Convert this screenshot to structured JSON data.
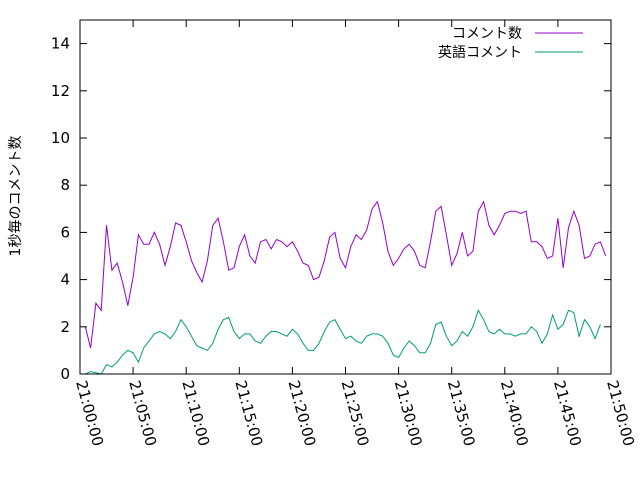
{
  "chart_data": {
    "type": "line",
    "ylabel": "1秒毎のコメント数",
    "ylim": [
      0,
      15
    ],
    "yticks": [
      "0",
      "2",
      "4",
      "6",
      "8",
      "10",
      "12",
      "14"
    ],
    "xlim": [
      "21:00:00",
      "21:50:00"
    ],
    "xticks": [
      "21:00:00",
      "21:05:00",
      "21:10:00",
      "21:15:00",
      "21:20:00",
      "21:25:00",
      "21:30:00",
      "21:35:00",
      "21:40:00",
      "21:45:00",
      "21:50:00"
    ],
    "x_unit": "minutes after 21:00:00",
    "legend_position": "top-right",
    "grid": false,
    "series": [
      {
        "name": "コメント数",
        "color": "#9400d3",
        "points": [
          [
            0.5,
            2.0
          ],
          [
            1.0,
            1.1
          ],
          [
            1.5,
            3.0
          ],
          [
            2.0,
            2.7
          ],
          [
            2.5,
            6.3
          ],
          [
            3.0,
            4.4
          ],
          [
            3.5,
            4.7
          ],
          [
            4.0,
            3.9
          ],
          [
            4.5,
            2.9
          ],
          [
            5.0,
            4.1
          ],
          [
            5.5,
            5.9
          ],
          [
            6.0,
            5.5
          ],
          [
            6.5,
            5.5
          ],
          [
            7.0,
            6.0
          ],
          [
            7.5,
            5.5
          ],
          [
            8.0,
            4.6
          ],
          [
            8.5,
            5.4
          ],
          [
            9.0,
            6.4
          ],
          [
            9.5,
            6.3
          ],
          [
            10.0,
            5.6
          ],
          [
            10.5,
            4.8
          ],
          [
            11.0,
            4.3
          ],
          [
            11.5,
            3.9
          ],
          [
            12.0,
            4.8
          ],
          [
            12.5,
            6.3
          ],
          [
            13.0,
            6.6
          ],
          [
            13.5,
            5.6
          ],
          [
            14.0,
            4.4
          ],
          [
            14.5,
            4.5
          ],
          [
            15.0,
            5.4
          ],
          [
            15.5,
            5.9
          ],
          [
            16.0,
            5.0
          ],
          [
            16.5,
            4.7
          ],
          [
            17.0,
            5.6
          ],
          [
            17.5,
            5.7
          ],
          [
            18.0,
            5.3
          ],
          [
            18.5,
            5.7
          ],
          [
            19.0,
            5.6
          ],
          [
            19.5,
            5.4
          ],
          [
            20.0,
            5.6
          ],
          [
            20.5,
            5.2
          ],
          [
            21.0,
            4.7
          ],
          [
            21.5,
            4.6
          ],
          [
            22.0,
            4.0
          ],
          [
            22.5,
            4.1
          ],
          [
            23.0,
            4.8
          ],
          [
            23.5,
            5.8
          ],
          [
            24.0,
            6.0
          ],
          [
            24.5,
            4.9
          ],
          [
            25.0,
            4.5
          ],
          [
            25.5,
            5.4
          ],
          [
            26.0,
            5.9
          ],
          [
            26.5,
            5.7
          ],
          [
            27.0,
            6.1
          ],
          [
            27.5,
            7.0
          ],
          [
            28.0,
            7.3
          ],
          [
            28.5,
            6.4
          ],
          [
            29.0,
            5.2
          ],
          [
            29.5,
            4.6
          ],
          [
            30.0,
            4.9
          ],
          [
            30.5,
            5.3
          ],
          [
            31.0,
            5.5
          ],
          [
            31.5,
            5.2
          ],
          [
            32.0,
            4.6
          ],
          [
            32.5,
            4.5
          ],
          [
            33.0,
            5.6
          ],
          [
            33.5,
            6.9
          ],
          [
            34.0,
            7.1
          ],
          [
            34.5,
            5.9
          ],
          [
            35.0,
            4.6
          ],
          [
            35.5,
            5.1
          ],
          [
            36.0,
            6.0
          ],
          [
            36.5,
            5.0
          ],
          [
            37.0,
            5.2
          ],
          [
            37.5,
            6.9
          ],
          [
            38.0,
            7.3
          ],
          [
            38.5,
            6.3
          ],
          [
            39.0,
            5.9
          ],
          [
            39.5,
            6.3
          ],
          [
            40.0,
            6.8
          ],
          [
            40.5,
            6.9
          ],
          [
            41.0,
            6.9
          ],
          [
            41.5,
            6.8
          ],
          [
            42.0,
            6.9
          ],
          [
            42.5,
            5.6
          ],
          [
            43.0,
            5.6
          ],
          [
            43.5,
            5.4
          ],
          [
            44.0,
            4.9
          ],
          [
            44.5,
            5.0
          ],
          [
            45.0,
            6.6
          ],
          [
            45.5,
            4.5
          ],
          [
            46.0,
            6.2
          ],
          [
            46.5,
            6.9
          ],
          [
            47.0,
            6.3
          ],
          [
            47.5,
            4.9
          ],
          [
            48.0,
            5.0
          ],
          [
            48.5,
            5.5
          ],
          [
            49.0,
            5.6
          ],
          [
            49.5,
            5.0
          ]
        ]
      },
      {
        "name": "英語コメント",
        "color": "#009e73",
        "points": [
          [
            0.5,
            0.0
          ],
          [
            1.0,
            0.1
          ],
          [
            1.5,
            0.05
          ],
          [
            2.0,
            0.0
          ],
          [
            2.5,
            0.4
          ],
          [
            3.0,
            0.3
          ],
          [
            3.5,
            0.5
          ],
          [
            4.0,
            0.8
          ],
          [
            4.5,
            1.0
          ],
          [
            5.0,
            0.9
          ],
          [
            5.5,
            0.5
          ],
          [
            6.0,
            1.1
          ],
          [
            6.5,
            1.4
          ],
          [
            7.0,
            1.7
          ],
          [
            7.5,
            1.8
          ],
          [
            8.0,
            1.7
          ],
          [
            8.5,
            1.5
          ],
          [
            9.0,
            1.8
          ],
          [
            9.5,
            2.3
          ],
          [
            10.0,
            2.0
          ],
          [
            10.5,
            1.6
          ],
          [
            11.0,
            1.2
          ],
          [
            11.5,
            1.1
          ],
          [
            12.0,
            1.0
          ],
          [
            12.5,
            1.3
          ],
          [
            13.0,
            1.9
          ],
          [
            13.5,
            2.3
          ],
          [
            14.0,
            2.4
          ],
          [
            14.5,
            1.8
          ],
          [
            15.0,
            1.5
          ],
          [
            15.5,
            1.7
          ],
          [
            16.0,
            1.7
          ],
          [
            16.5,
            1.4
          ],
          [
            17.0,
            1.3
          ],
          [
            17.5,
            1.6
          ],
          [
            18.0,
            1.8
          ],
          [
            18.5,
            1.8
          ],
          [
            19.0,
            1.7
          ],
          [
            19.5,
            1.6
          ],
          [
            20.0,
            1.9
          ],
          [
            20.5,
            1.7
          ],
          [
            21.0,
            1.3
          ],
          [
            21.5,
            1.0
          ],
          [
            22.0,
            1.0
          ],
          [
            22.5,
            1.3
          ],
          [
            23.0,
            1.8
          ],
          [
            23.5,
            2.2
          ],
          [
            24.0,
            2.3
          ],
          [
            24.5,
            1.9
          ],
          [
            25.0,
            1.5
          ],
          [
            25.5,
            1.6
          ],
          [
            26.0,
            1.4
          ],
          [
            26.5,
            1.3
          ],
          [
            27.0,
            1.6
          ],
          [
            27.5,
            1.7
          ],
          [
            28.0,
            1.7
          ],
          [
            28.5,
            1.6
          ],
          [
            29.0,
            1.3
          ],
          [
            29.5,
            0.8
          ],
          [
            30.0,
            0.7
          ],
          [
            30.5,
            1.1
          ],
          [
            31.0,
            1.4
          ],
          [
            31.5,
            1.2
          ],
          [
            32.0,
            0.9
          ],
          [
            32.5,
            0.9
          ],
          [
            33.0,
            1.3
          ],
          [
            33.5,
            2.1
          ],
          [
            34.0,
            2.2
          ],
          [
            34.5,
            1.6
          ],
          [
            35.0,
            1.2
          ],
          [
            35.5,
            1.4
          ],
          [
            36.0,
            1.8
          ],
          [
            36.5,
            1.6
          ],
          [
            37.0,
            2.0
          ],
          [
            37.5,
            2.7
          ],
          [
            38.0,
            2.3
          ],
          [
            38.5,
            1.8
          ],
          [
            39.0,
            1.7
          ],
          [
            39.5,
            1.9
          ],
          [
            40.0,
            1.7
          ],
          [
            40.5,
            1.7
          ],
          [
            41.0,
            1.6
          ],
          [
            41.5,
            1.7
          ],
          [
            42.0,
            1.7
          ],
          [
            42.5,
            2.0
          ],
          [
            43.0,
            1.8
          ],
          [
            43.5,
            1.3
          ],
          [
            44.0,
            1.7
          ],
          [
            44.5,
            2.5
          ],
          [
            45.0,
            1.9
          ],
          [
            45.5,
            2.1
          ],
          [
            46.0,
            2.7
          ],
          [
            46.5,
            2.6
          ],
          [
            47.0,
            1.6
          ],
          [
            47.5,
            2.3
          ],
          [
            48.0,
            2.0
          ],
          [
            48.5,
            1.5
          ],
          [
            49.0,
            2.1
          ]
        ]
      }
    ]
  }
}
